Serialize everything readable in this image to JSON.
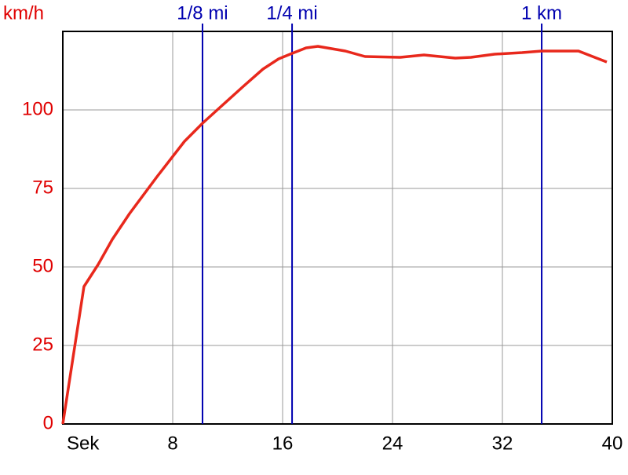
{
  "chart_data": {
    "type": "line",
    "y_label": "km/h",
    "x": [
      0,
      1.54,
      2.57,
      3.6,
      4.86,
      6.86,
      8.86,
      10.17,
      11.43,
      13.14,
      14.57,
      15.71,
      16.69,
      17.71,
      18.57,
      20.57,
      22,
      24.57,
      26.29,
      28.57,
      29.71,
      31.43,
      33.43,
      34.86,
      37.54,
      38.86,
      39.6
    ],
    "series": [
      {
        "color": "#e8281c",
        "values": [
          0,
          43.75,
          50.75,
          58.75,
          67,
          78.75,
          90,
          95.75,
          100.75,
          107.5,
          113,
          116.25,
          118,
          119.75,
          120.25,
          118.75,
          117,
          116.75,
          117.5,
          116.5,
          116.75,
          117.75,
          118.25,
          118.75,
          118.75,
          116.5,
          115.25
        ]
      }
    ],
    "xlim": [
      0,
      40
    ],
    "ylim": [
      0,
      125
    ],
    "xticks": [
      {
        "value": 0,
        "label": "Sek"
      },
      8,
      16,
      24,
      32,
      40
    ],
    "yticks": [
      0,
      25,
      50,
      75,
      100
    ],
    "grid": true,
    "markers": [
      {
        "x": 10.17,
        "label": "1/8 mi"
      },
      {
        "x": 16.69,
        "label": "1/4 mi"
      },
      {
        "x": 34.86,
        "label": "1 km"
      }
    ],
    "marker_color": "#0000b0",
    "axis_label_color": "#e00000"
  }
}
